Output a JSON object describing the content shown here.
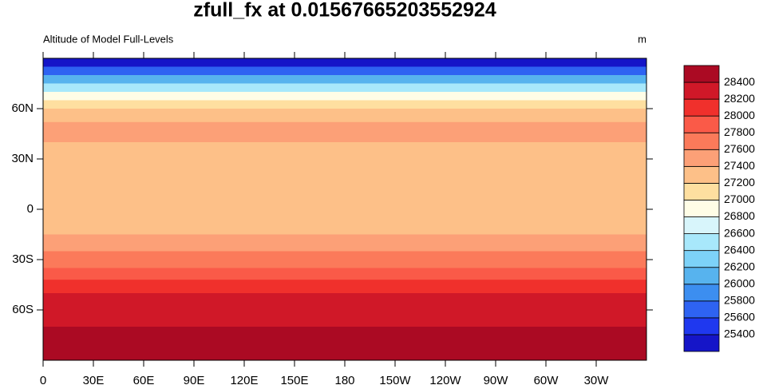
{
  "chart_data": {
    "type": "contour_map",
    "title": "zfull_fx at 0.01567665203552924",
    "left_label": "Altitude of Model Full-Levels",
    "right_label": "m",
    "xlim": [
      0,
      360
    ],
    "ylim": [
      -90,
      90
    ],
    "xticks": [
      0,
      {
        "value": 30,
        "label": "30E"
      },
      {
        "value": 60,
        "label": "60E"
      },
      {
        "value": 90,
        "label": "90E"
      },
      {
        "value": 120,
        "label": "120E"
      },
      {
        "value": 150,
        "label": "150E"
      },
      180,
      {
        "value": 210,
        "label": "150W"
      },
      {
        "value": 240,
        "label": "120W"
      },
      {
        "value": 270,
        "label": "90W"
      },
      {
        "value": 300,
        "label": "60W"
      },
      {
        "value": 330,
        "label": "30W"
      }
    ],
    "yticks": [
      {
        "value": 60,
        "label": "60N"
      },
      {
        "value": 30,
        "label": "30N"
      },
      0,
      {
        "value": -30,
        "label": "30S"
      },
      {
        "value": -60,
        "label": "60S"
      }
    ],
    "levels": [
      25400,
      25600,
      25800,
      26000,
      26200,
      26400,
      26600,
      26800,
      27000,
      27200,
      27400,
      27600,
      27800,
      28000,
      28200,
      28400
    ],
    "colors": [
      "#1515c8",
      "#1f38ef",
      "#2e63f2",
      "#3c8ef0",
      "#57b3ee",
      "#7dd2f8",
      "#a8e8fb",
      "#d8f5fb",
      "#fffde6",
      "#fedfa0",
      "#fdc088",
      "#fca077",
      "#fb7a5a",
      "#fa5a48",
      "#f0302c",
      "#d01828",
      "#ab0a23"
    ],
    "zonal_profile": {
      "lat": [
        90,
        85,
        80,
        75,
        70,
        65,
        60,
        52,
        40,
        0,
        -15,
        -25,
        -35,
        -42,
        -50,
        -60,
        -70
      ],
      "values": [
        25300,
        25700,
        26100,
        26500,
        26900,
        27100,
        27300,
        27500,
        27300,
        27300,
        27500,
        27650,
        27850,
        28050,
        28250,
        28350,
        28500
      ]
    }
  }
}
